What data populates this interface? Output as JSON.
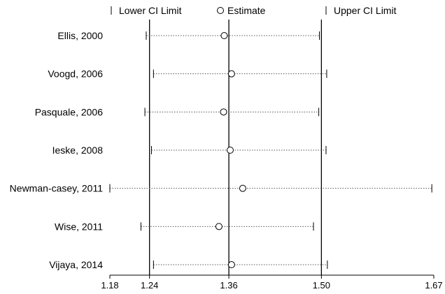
{
  "chart_data": {
    "type": "forest",
    "legend": {
      "lower_label": "Lower CI Limit",
      "estimate_label": "Estimate",
      "upper_label": "Upper CI Limit"
    },
    "xlim": [
      1.18,
      1.67
    ],
    "x_ticks": [
      {
        "value": 1.18,
        "label": "1.18"
      },
      {
        "value": 1.24,
        "label": "1.24"
      },
      {
        "value": 1.36,
        "label": "1.36"
      },
      {
        "value": 1.5,
        "label": "1.50"
      },
      {
        "value": 1.67,
        "label": "1.67"
      }
    ],
    "reference_lines": [
      1.24,
      1.36,
      1.5
    ],
    "studies": [
      {
        "label": "Ellis, 2000",
        "lower": 1.235,
        "estimate": 1.353,
        "upper": 1.497
      },
      {
        "label": "Voogd, 2006",
        "lower": 1.246,
        "estimate": 1.364,
        "upper": 1.508
      },
      {
        "label": "Pasquale, 2006",
        "lower": 1.233,
        "estimate": 1.352,
        "upper": 1.496
      },
      {
        "label": "Ieske, 2008",
        "lower": 1.243,
        "estimate": 1.362,
        "upper": 1.507
      },
      {
        "label": "Newman-casey, 2011",
        "lower": 1.18,
        "estimate": 1.381,
        "upper": 1.667
      },
      {
        "label": "Wise, 2011",
        "lower": 1.227,
        "estimate": 1.345,
        "upper": 1.488
      },
      {
        "label": "Vijaya, 2014",
        "lower": 1.246,
        "estimate": 1.364,
        "upper": 1.509
      }
    ]
  }
}
